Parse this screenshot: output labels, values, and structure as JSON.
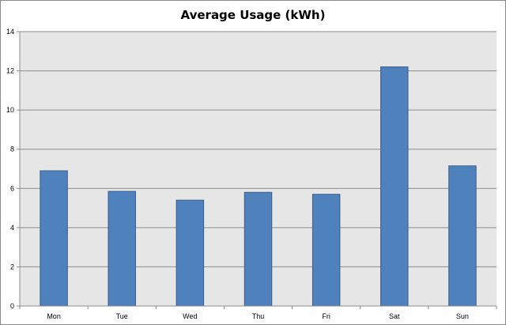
{
  "chart_data": {
    "type": "bar",
    "title": "Average Usage (kWh)",
    "categories": [
      "Mon",
      "Tue",
      "Wed",
      "Thu",
      "Fri",
      "Sat",
      "Sun"
    ],
    "series": [
      {
        "values": [
          6.9,
          5.85,
          5.4,
          5.8,
          5.7,
          12.2,
          7.15
        ]
      }
    ],
    "ylim": [
      0,
      14
    ],
    "yticks": [
      0,
      2,
      4,
      6,
      8,
      10,
      12,
      14
    ],
    "xlabel": "",
    "ylabel": "",
    "grid": true,
    "legend": "none",
    "colors": {
      "bar_fill": "#4f81bd",
      "bar_stroke": "#385d8a",
      "plot_background": "#e6e6e6",
      "gridline": "#8c8c8c",
      "axis": "#8c8c8c"
    }
  }
}
